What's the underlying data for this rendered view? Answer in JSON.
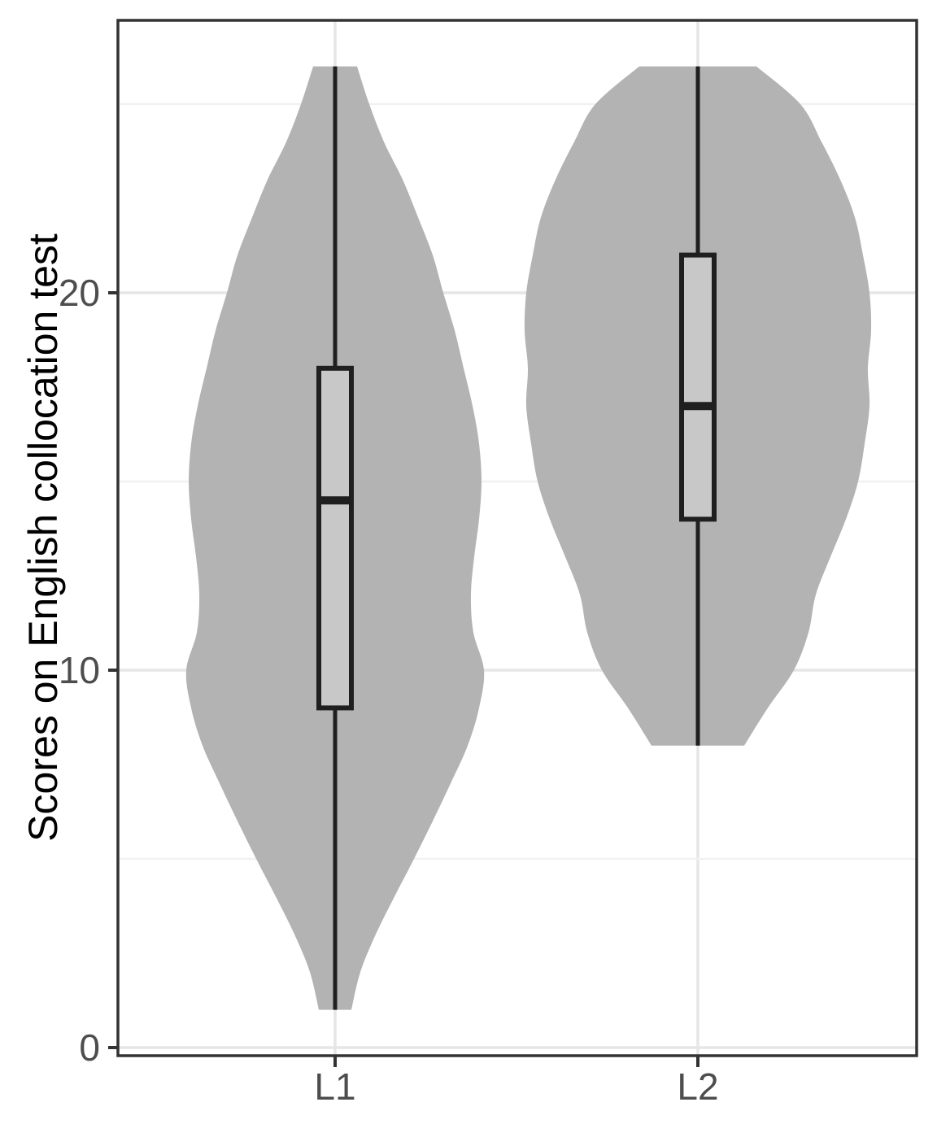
{
  "chart_data": {
    "type": "violin",
    "title": "",
    "ylabel": "Scores on English collocation test",
    "xlabel": "",
    "ylim": [
      -0.25,
      27.2
    ],
    "grid": "major-and-minor",
    "legend": "none",
    "y_ticks": [
      {
        "value": 0,
        "label": "0"
      },
      {
        "value": 10,
        "label": "10"
      },
      {
        "value": 20,
        "label": "20"
      }
    ],
    "y_minor_ticks": [
      5,
      15,
      25
    ],
    "categories": [
      {
        "label": "L1"
      },
      {
        "label": "L2"
      }
    ],
    "series": [
      {
        "name": "L1",
        "box": {
          "min": 1,
          "q1": 9,
          "median": 14.5,
          "q3": 18,
          "max": 26
        },
        "violin_profile_score_halfwidthpx": [
          [
            26,
            27
          ],
          [
            25,
            42
          ],
          [
            24,
            60
          ],
          [
            23,
            83
          ],
          [
            22,
            102
          ],
          [
            21,
            120
          ],
          [
            20,
            133
          ],
          [
            19,
            147
          ],
          [
            18,
            158
          ],
          [
            17,
            169
          ],
          [
            16,
            177
          ],
          [
            15,
            180
          ],
          [
            14,
            177
          ],
          [
            13,
            171
          ],
          [
            12,
            167
          ],
          [
            11,
            170
          ],
          [
            10,
            183
          ],
          [
            9,
            177
          ],
          [
            8,
            163
          ],
          [
            7,
            142
          ],
          [
            6,
            120
          ],
          [
            5,
            97
          ],
          [
            4,
            73
          ],
          [
            3,
            50
          ],
          [
            2,
            31
          ],
          [
            1,
            20
          ]
        ]
      },
      {
        "name": "L2",
        "box": {
          "min": 8,
          "q1": 14,
          "median": 17,
          "q3": 21,
          "max": 26
        },
        "violin_profile_score_halfwidthpx": [
          [
            26,
            72
          ],
          [
            25,
            126
          ],
          [
            24,
            152
          ],
          [
            23,
            175
          ],
          [
            22,
            193
          ],
          [
            21,
            203
          ],
          [
            20,
            211
          ],
          [
            19,
            213
          ],
          [
            18,
            209
          ],
          [
            17,
            211
          ],
          [
            16,
            205
          ],
          [
            15,
            197
          ],
          [
            14,
            182
          ],
          [
            13,
            163
          ],
          [
            12,
            145
          ],
          [
            11,
            136
          ],
          [
            10,
            118
          ],
          [
            9,
            86
          ],
          [
            8,
            57
          ]
        ]
      }
    ],
    "colors": {
      "violin_fill": "#b3b3b3",
      "box_fill": "#c8c8c8",
      "box_stroke": "#1f1f1f",
      "whisker_stroke": "#1f1f1f",
      "grid_major": "#e6e6e6",
      "grid_minor": "#f1f1f1",
      "panel_border": "#333333",
      "tick_mark": "#333333",
      "tick_label": "#4d4d4d",
      "axis_title": "#000000",
      "panel_background": "#ffffff"
    }
  }
}
